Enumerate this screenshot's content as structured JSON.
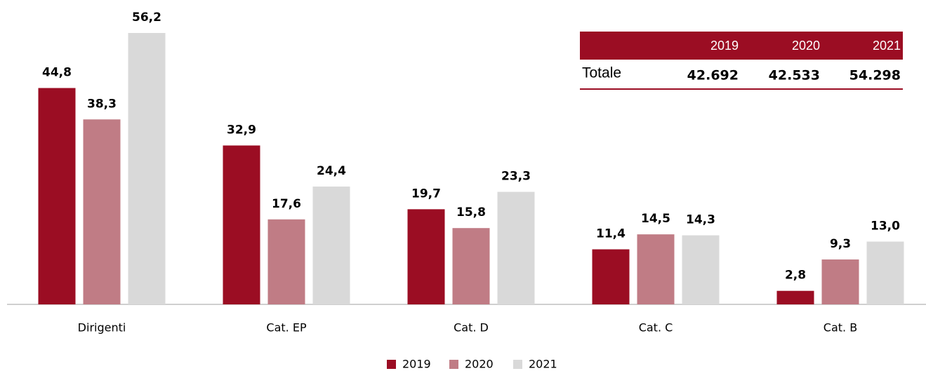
{
  "chart_data": {
    "type": "bar",
    "categories": [
      "Dirigenti",
      "Cat. EP",
      "Cat. D",
      "Cat. C",
      "Cat. B"
    ],
    "series": [
      {
        "name": "2019",
        "color": "#9b0d23",
        "values": [
          44.8,
          32.9,
          19.7,
          11.4,
          2.8
        ],
        "value_labels": [
          "44,8",
          "32,9",
          "19,7",
          "11,4",
          "2,8"
        ]
      },
      {
        "name": "2020",
        "color": "#c07c85",
        "values": [
          38.3,
          17.6,
          15.8,
          14.5,
          9.3
        ],
        "value_labels": [
          "38,3",
          "17,6",
          "15,8",
          "14,5",
          "9,3"
        ]
      },
      {
        "name": "2021",
        "color": "#d9d9d9",
        "values": [
          56.2,
          24.4,
          23.3,
          14.3,
          13.0
        ],
        "value_labels": [
          "56,2",
          "24,4",
          "23,3",
          "14,3",
          "13,0"
        ]
      }
    ],
    "legend": "bottom"
  },
  "table": {
    "header": [
      "2019",
      "2020",
      "2021"
    ],
    "rows": [
      [
        "Totale",
        "42.692",
        "42.533",
        "54.298"
      ]
    ]
  }
}
